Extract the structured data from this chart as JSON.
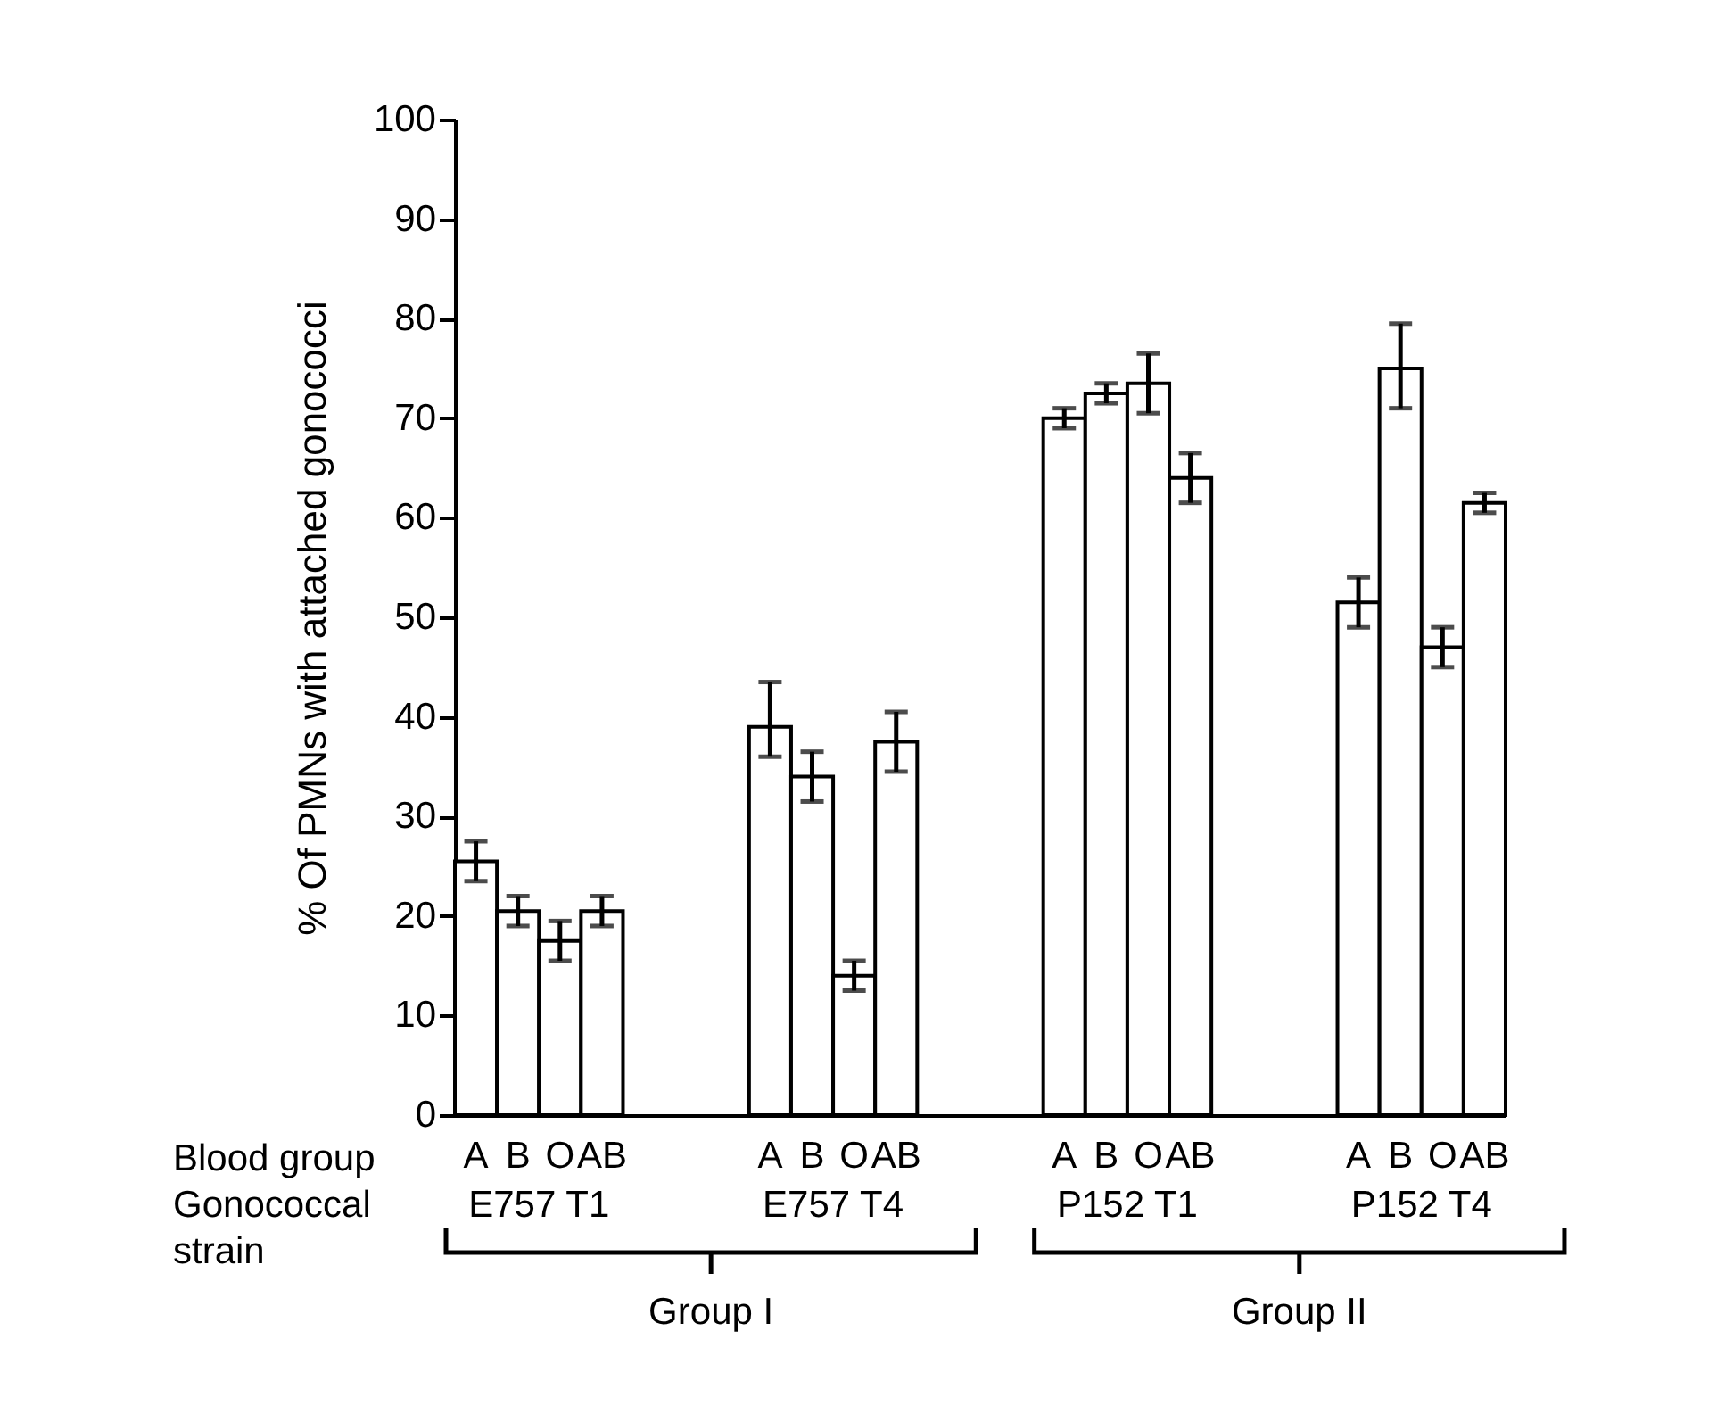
{
  "chart_data": {
    "type": "bar",
    "ylabel": "% Of PMNs with attached gonococci",
    "categories": [
      "A",
      "B",
      "O",
      "AB",
      null,
      null,
      null,
      "A",
      "B",
      "O",
      "AB",
      null,
      null,
      null,
      "A",
      "B",
      "O",
      "AB",
      null,
      null,
      null,
      "A",
      "B",
      "O",
      "AB"
    ],
    "values": [
      25.5,
      20.5,
      17.5,
      20.5,
      null,
      null,
      null,
      39,
      34,
      14,
      37.5,
      null,
      null,
      null,
      70,
      72.5,
      73.5,
      64,
      null,
      null,
      null,
      51.5,
      75,
      47,
      61.5
    ],
    "errors": [
      2,
      1.5,
      2,
      1.5,
      null,
      null,
      null,
      [
        36,
        43.5
      ],
      2.5,
      1.5,
      3,
      null,
      null,
      null,
      1,
      1,
      3,
      2.5,
      null,
      null,
      null,
      2.5,
      [
        71,
        79.5
      ],
      2,
      1
    ],
    "color": "#ffffff",
    "ylim": [
      0,
      100
    ],
    "yticks": [
      0,
      10,
      20,
      30,
      40,
      50,
      60,
      70,
      80,
      90,
      100
    ],
    "annotations": [
      "Blood group",
      "Gonococcal strain",
      "E757 T1",
      "E757 T4",
      "P152 T1",
      "P152 T4",
      "Group I",
      "Group II"
    ]
  }
}
